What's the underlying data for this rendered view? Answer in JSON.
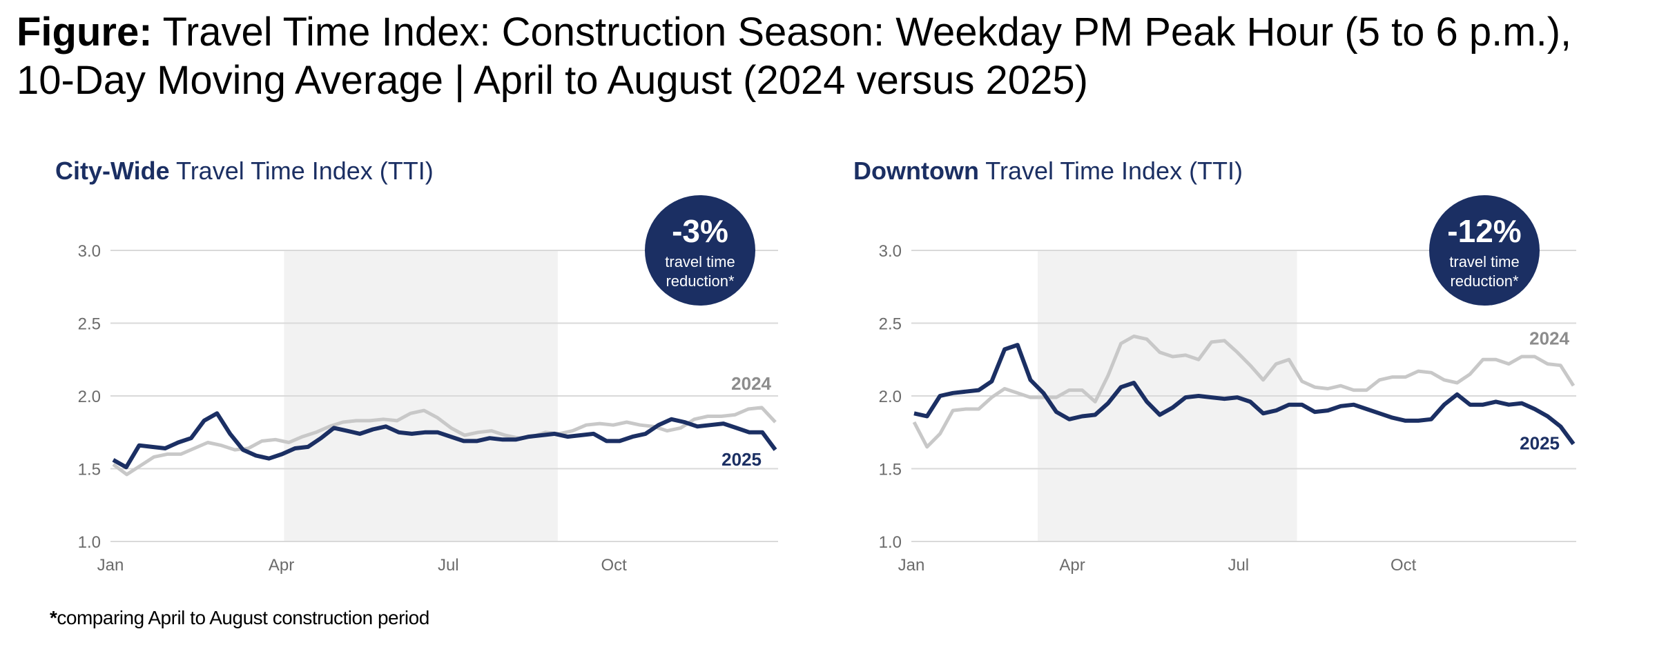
{
  "figure": {
    "title_lead": "Figure:",
    "title_line1": " Travel Time Index: Construction Season: Weekday PM Peak Hour (5 to 6 p.m.),",
    "title_line2": "10-Day Moving Average | April to August (2024 versus 2025)"
  },
  "footnote": {
    "star": "*",
    "text": "comparing April to August construction period"
  },
  "colors": {
    "series_2025": "#1b2f63",
    "series_2024": "#c8c8c8",
    "label_2024": "#8c8c8c",
    "shade": "#f2f2f2",
    "grid": "#d9d9d9",
    "badge": "#1b2f63",
    "axis_text": "#6b6b6b"
  },
  "chart_data": [
    {
      "type": "line",
      "title_bold": "City-Wide",
      "title_rest": " Travel Time Index (TTI)",
      "badge": {
        "value": "-3%",
        "line1": "travel time",
        "line2": "reduction*"
      },
      "x_ticks": [
        "Jan",
        "Apr",
        "Jul",
        "Oct"
      ],
      "ylim": [
        1.0,
        3.0
      ],
      "y_ticks": [
        "1.0",
        "1.5",
        "2.0",
        "2.5",
        "3.0"
      ],
      "shaded_period": [
        0.26,
        0.67
      ],
      "series": [
        {
          "name": "2024",
          "values": [
            1.53,
            1.46,
            1.52,
            1.58,
            1.6,
            1.6,
            1.64,
            1.68,
            1.66,
            1.63,
            1.64,
            1.69,
            1.7,
            1.68,
            1.72,
            1.75,
            1.79,
            1.82,
            1.83,
            1.83,
            1.84,
            1.83,
            1.88,
            1.9,
            1.85,
            1.78,
            1.73,
            1.75,
            1.76,
            1.73,
            1.71,
            1.72,
            1.75,
            1.74,
            1.76,
            1.8,
            1.81,
            1.8,
            1.82,
            1.8,
            1.79,
            1.76,
            1.78,
            1.84,
            1.86,
            1.86,
            1.87,
            1.91,
            1.92,
            1.82
          ]
        },
        {
          "name": "2025",
          "values": [
            1.56,
            1.51,
            1.66,
            1.65,
            1.64,
            1.68,
            1.71,
            1.83,
            1.88,
            1.74,
            1.63,
            1.59,
            1.57,
            1.6,
            1.64,
            1.65,
            1.71,
            1.78,
            1.76,
            1.74,
            1.77,
            1.79,
            1.75,
            1.74,
            1.75,
            1.75,
            1.72,
            1.69,
            1.69,
            1.71,
            1.7,
            1.7,
            1.72,
            1.73,
            1.74,
            1.72,
            1.73,
            1.74,
            1.69,
            1.69,
            1.72,
            1.74,
            1.8,
            1.84,
            1.82,
            1.79,
            1.8,
            1.81,
            1.78,
            1.75,
            1.75,
            1.63
          ]
        }
      ]
    },
    {
      "type": "line",
      "title_bold": "Downtown",
      "title_rest": " Travel Time Index (TTI)",
      "badge": {
        "value": "-12%",
        "line1": "travel time",
        "line2": "reduction*"
      },
      "x_ticks": [
        "Jan",
        "Apr",
        "Jul",
        "Oct"
      ],
      "ylim": [
        1.0,
        3.0
      ],
      "y_ticks": [
        "1.0",
        "1.5",
        "2.0",
        "2.5",
        "3.0"
      ],
      "shaded_period": [
        0.19,
        0.58
      ],
      "series": [
        {
          "name": "2024",
          "values": [
            1.82,
            1.65,
            1.74,
            1.9,
            1.91,
            1.91,
            1.99,
            2.05,
            2.02,
            1.99,
            1.99,
            1.99,
            2.04,
            2.04,
            1.96,
            2.14,
            2.36,
            2.41,
            2.39,
            2.3,
            2.27,
            2.28,
            2.25,
            2.37,
            2.38,
            2.3,
            2.21,
            2.11,
            2.22,
            2.25,
            2.1,
            2.06,
            2.05,
            2.07,
            2.04,
            2.04,
            2.11,
            2.13,
            2.13,
            2.17,
            2.16,
            2.11,
            2.09,
            2.15,
            2.25,
            2.25,
            2.22,
            2.27,
            2.27,
            2.22,
            2.21,
            2.07
          ]
        },
        {
          "name": "2025",
          "values": [
            1.88,
            1.86,
            2.0,
            2.02,
            2.03,
            2.04,
            2.1,
            2.32,
            2.35,
            2.11,
            2.02,
            1.89,
            1.84,
            1.86,
            1.87,
            1.95,
            2.06,
            2.09,
            1.96,
            1.87,
            1.92,
            1.99,
            2.0,
            1.99,
            1.98,
            1.99,
            1.96,
            1.88,
            1.9,
            1.94,
            1.94,
            1.89,
            1.9,
            1.93,
            1.94,
            1.91,
            1.88,
            1.85,
            1.83,
            1.83,
            1.84,
            1.94,
            2.01,
            1.94,
            1.94,
            1.96,
            1.94,
            1.95,
            1.91,
            1.86,
            1.79,
            1.67
          ]
        }
      ]
    }
  ]
}
